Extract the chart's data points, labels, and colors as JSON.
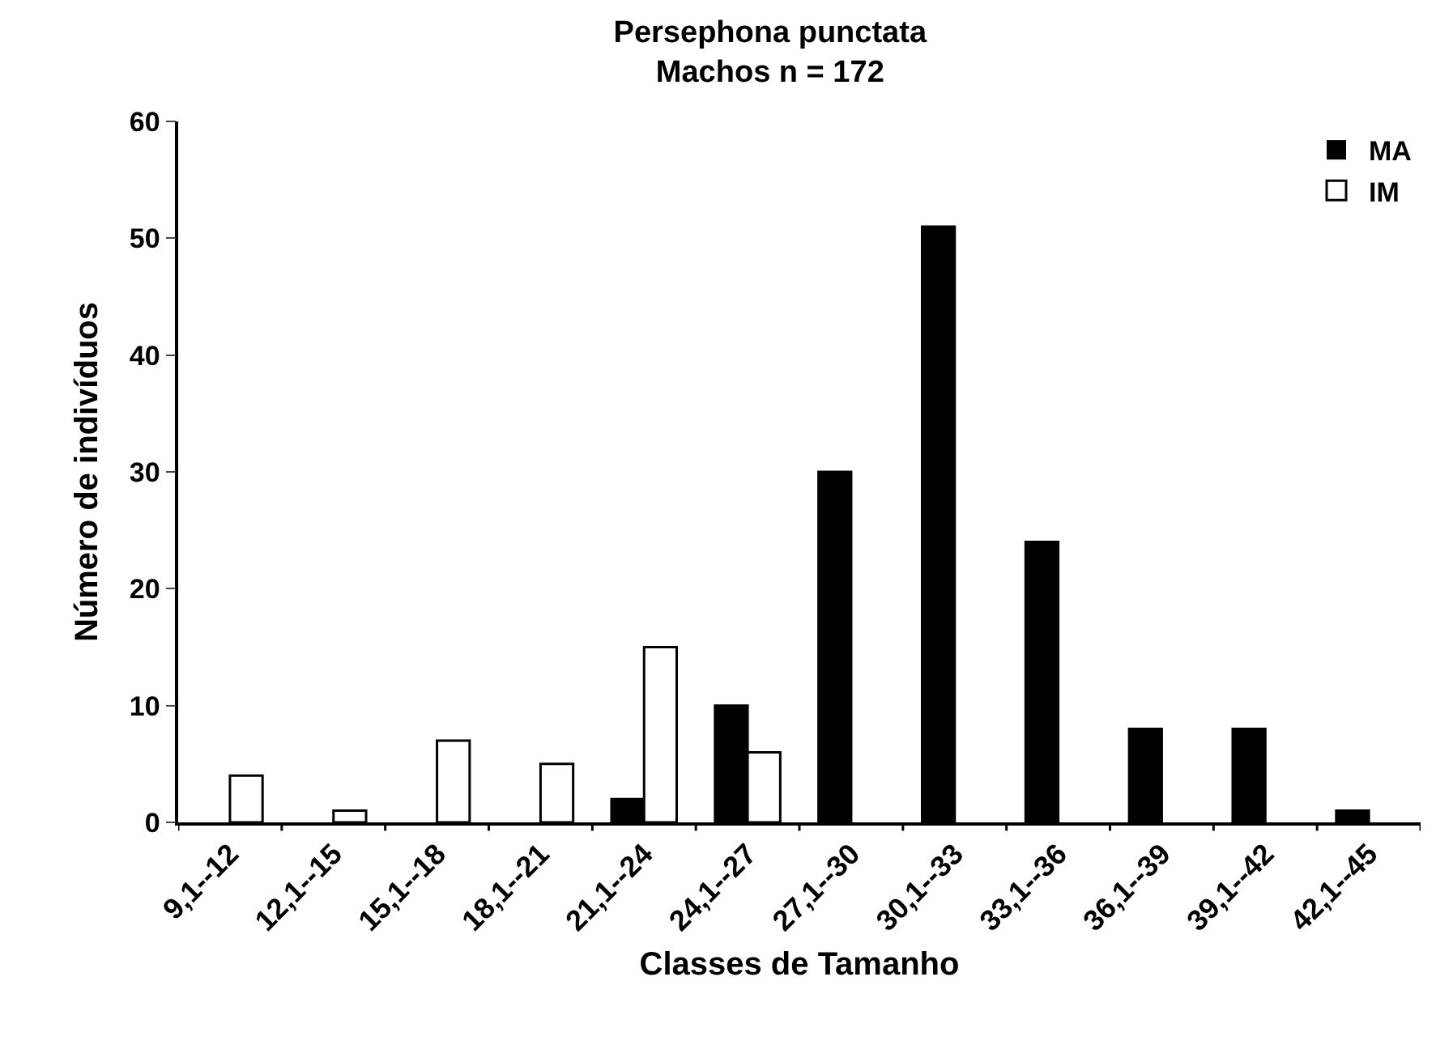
{
  "chart_data": {
    "type": "bar",
    "title": "Persephona punctata",
    "subtitle": "Machos n = 172",
    "xlabel": "Classes de Tamanho",
    "ylabel": "Número de indivíduos",
    "categories": [
      "9,1--12",
      "12,1--15",
      "15,1--18",
      "18,1--21",
      "21,1--24",
      "24,1--27",
      "27,1--30",
      "30,1--33",
      "33,1--36",
      "36,1--39",
      "39,1--42",
      "42,1--45"
    ],
    "series": [
      {
        "name": "MA",
        "color": "#000000",
        "values": [
          0,
          0,
          0,
          0,
          2,
          10,
          30,
          51,
          24,
          8,
          8,
          1
        ]
      },
      {
        "name": "IM",
        "color": "#ffffff",
        "values": [
          4,
          1,
          7,
          5,
          15,
          6,
          0,
          0,
          0,
          0,
          0,
          0
        ]
      }
    ],
    "ylim": [
      0,
      60
    ],
    "yticks": [
      0,
      10,
      20,
      30,
      40,
      50,
      60
    ],
    "grid": false,
    "legend": "top right"
  }
}
